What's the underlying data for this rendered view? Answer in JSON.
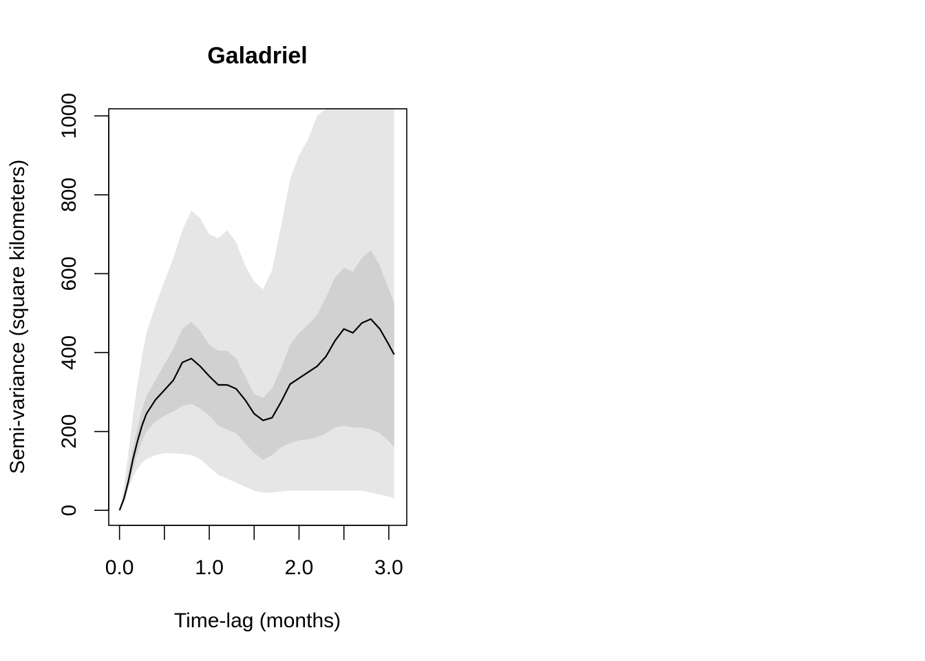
{
  "chart_data": {
    "type": "area",
    "title": "Galadriel",
    "xlabel": "Time-lag (months)",
    "ylabel": "Semi-variance (square kilometers)",
    "xlim": [
      -0.12,
      3.2
    ],
    "ylim": [
      -38,
      1018
    ],
    "x_ticks": [
      0,
      0.5,
      1.0,
      1.5,
      2.0,
      2.5,
      3.0
    ],
    "x_tick_labels": [
      "0.0",
      "",
      "1.0",
      "",
      "2.0",
      "",
      "3.0"
    ],
    "y_ticks": [
      0,
      200,
      400,
      600,
      800,
      1000
    ],
    "y_tick_labels": [
      "0",
      "200",
      "400",
      "600",
      "800",
      "1000"
    ],
    "grid": false,
    "legend": "none",
    "colors": {
      "outer_band": "#e6e6e6",
      "inner_band": "#d1d1d1",
      "line": "#000000"
    },
    "x": [
      0.0,
      0.05,
      0.1,
      0.15,
      0.2,
      0.25,
      0.3,
      0.4,
      0.5,
      0.6,
      0.7,
      0.8,
      0.9,
      1.0,
      1.1,
      1.2,
      1.3,
      1.4,
      1.5,
      1.6,
      1.7,
      1.8,
      1.9,
      2.0,
      2.1,
      2.2,
      2.3,
      2.4,
      2.5,
      2.6,
      2.7,
      2.8,
      2.9,
      3.0,
      3.06
    ],
    "series": [
      {
        "name": "",
        "values": [
          0,
          30,
          75,
          130,
          175,
          215,
          245,
          280,
          305,
          330,
          375,
          385,
          365,
          340,
          318,
          318,
          308,
          280,
          245,
          228,
          235,
          275,
          320,
          335,
          350,
          365,
          390,
          430,
          460,
          450,
          475,
          485,
          460,
          420,
          395
        ]
      },
      {
        "name": "",
        "upper_95": [
          0,
          60,
          150,
          240,
          320,
          390,
          450,
          520,
          580,
          640,
          710,
          760,
          740,
          700,
          690,
          710,
          680,
          620,
          580,
          560,
          610,
          720,
          840,
          900,
          940,
          1000,
          1020,
          1020,
          1020,
          1020,
          1020,
          1020,
          1020,
          1020,
          1020
        ],
        "lower_95": [
          0,
          20,
          55,
          85,
          105,
          120,
          130,
          140,
          145,
          145,
          143,
          140,
          130,
          110,
          90,
          80,
          70,
          60,
          50,
          45,
          45,
          48,
          50,
          50,
          50,
          50,
          50,
          50,
          50,
          50,
          50,
          45,
          40,
          35,
          30
        ]
      },
      {
        "name": "",
        "upper_50": [
          0,
          40,
          100,
          160,
          210,
          255,
          290,
          330,
          370,
          410,
          460,
          478,
          455,
          420,
          405,
          405,
          385,
          340,
          295,
          285,
          310,
          360,
          420,
          450,
          470,
          495,
          540,
          590,
          615,
          605,
          640,
          660,
          620,
          560,
          525
        ],
        "lower_50": [
          0,
          25,
          65,
          105,
          145,
          175,
          200,
          225,
          240,
          250,
          265,
          270,
          258,
          240,
          215,
          205,
          195,
          170,
          145,
          128,
          140,
          160,
          170,
          178,
          180,
          185,
          195,
          210,
          215,
          210,
          210,
          205,
          195,
          175,
          160
        ]
      }
    ]
  }
}
